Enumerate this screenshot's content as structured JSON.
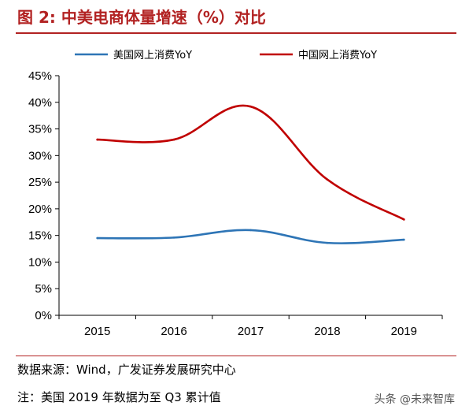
{
  "figure_title": "图 2: 中美电商体量增速（%）对比",
  "source": "数据来源：Wind，广发证券发展研究中心",
  "note": "注：美国 2019 年数据为至 Q3 累计值",
  "watermark": "头条 @未来智库",
  "chart_data": {
    "type": "line",
    "categories": [
      "2015",
      "2016",
      "2017",
      "2018",
      "2019"
    ],
    "ylim": [
      0,
      45
    ],
    "yticks": [
      "0%",
      "5%",
      "10%",
      "15%",
      "20%",
      "25%",
      "30%",
      "35%",
      "40%",
      "45%"
    ],
    "ytick_values": [
      0,
      5,
      10,
      15,
      20,
      25,
      30,
      35,
      40,
      45
    ],
    "grid": false,
    "legend_position": "top",
    "smooth": true,
    "series": [
      {
        "name": "美国网上消费YoY",
        "color": "#2e75b6",
        "values": [
          14.5,
          14.6,
          16.0,
          13.6,
          14.2
        ]
      },
      {
        "name": "中国网上消费YoY",
        "color": "#c00000",
        "values": [
          33.0,
          33.0,
          39.2,
          25.5,
          18.0
        ]
      }
    ]
  }
}
